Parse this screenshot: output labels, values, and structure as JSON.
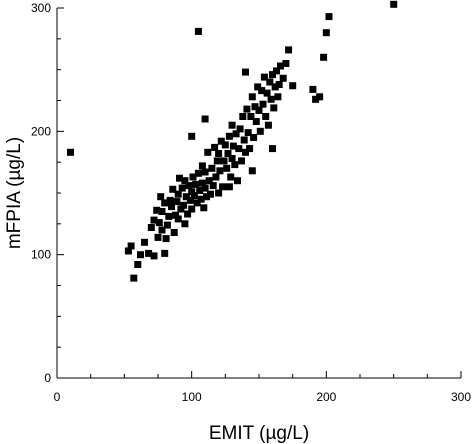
{
  "chart_data": {
    "type": "scatter",
    "title": "",
    "xlabel": "EMIT (µg/L)",
    "ylabel": "mFPIA (µg/L)",
    "xlim": [
      0,
      300
    ],
    "ylim": [
      0,
      300
    ],
    "xticks": [
      "0",
      "100",
      "200",
      "300"
    ],
    "yticks": [
      "0",
      "100",
      "200",
      "300"
    ],
    "grid": false,
    "marker": "square",
    "marker_color": "#000000",
    "points": [
      [
        10,
        183
      ],
      [
        53,
        103
      ],
      [
        55,
        107
      ],
      [
        57,
        81
      ],
      [
        60,
        92
      ],
      [
        62,
        100
      ],
      [
        65,
        110
      ],
      [
        68,
        101
      ],
      [
        70,
        122
      ],
      [
        72,
        99
      ],
      [
        72,
        128
      ],
      [
        74,
        136
      ],
      [
        75,
        114
      ],
      [
        76,
        126
      ],
      [
        77,
        147
      ],
      [
        78,
        135
      ],
      [
        78,
        120
      ],
      [
        80,
        142
      ],
      [
        80,
        101
      ],
      [
        81,
        113
      ],
      [
        82,
        124
      ],
      [
        83,
        131
      ],
      [
        84,
        144
      ],
      [
        85,
        139
      ],
      [
        86,
        153
      ],
      [
        87,
        118
      ],
      [
        88,
        132
      ],
      [
        89,
        143
      ],
      [
        90,
        129
      ],
      [
        90,
        149
      ],
      [
        91,
        162
      ],
      [
        92,
        137
      ],
      [
        93,
        154
      ],
      [
        94,
        140
      ],
      [
        95,
        125
      ],
      [
        95,
        160
      ],
      [
        96,
        147
      ],
      [
        97,
        133
      ],
      [
        98,
        156
      ],
      [
        99,
        144
      ],
      [
        100,
        151
      ],
      [
        100,
        137
      ],
      [
        101,
        163
      ],
      [
        102,
        148
      ],
      [
        103,
        157
      ],
      [
        104,
        142
      ],
      [
        105,
        166
      ],
      [
        106,
        152
      ],
      [
        107,
        145
      ],
      [
        108,
        172
      ],
      [
        108,
        158
      ],
      [
        109,
        138
      ],
      [
        110,
        154
      ],
      [
        110,
        167
      ],
      [
        111,
        147
      ],
      [
        112,
        183
      ],
      [
        113,
        160
      ],
      [
        114,
        149
      ],
      [
        115,
        170
      ],
      [
        116,
        156
      ],
      [
        117,
        187
      ],
      [
        118,
        163
      ],
      [
        119,
        176
      ],
      [
        120,
        150
      ],
      [
        120,
        182
      ],
      [
        121,
        168
      ],
      [
        122,
        192
      ],
      [
        123,
        155
      ],
      [
        124,
        176
      ],
      [
        125,
        189
      ],
      [
        126,
        170
      ],
      [
        127,
        182
      ],
      [
        128,
        196
      ],
      [
        129,
        163
      ],
      [
        130,
        178
      ],
      [
        130,
        205
      ],
      [
        131,
        188
      ],
      [
        132,
        173
      ],
      [
        133,
        198
      ],
      [
        134,
        160
      ],
      [
        135,
        186
      ],
      [
        136,
        202
      ],
      [
        137,
        176
      ],
      [
        138,
        212
      ],
      [
        139,
        193
      ],
      [
        140,
        183
      ],
      [
        141,
        218
      ],
      [
        142,
        199
      ],
      [
        143,
        186
      ],
      [
        144,
        212
      ],
      [
        145,
        228
      ],
      [
        146,
        195
      ],
      [
        147,
        220
      ],
      [
        148,
        208
      ],
      [
        149,
        236
      ],
      [
        150,
        217
      ],
      [
        151,
        200
      ],
      [
        152,
        233
      ],
      [
        153,
        222
      ],
      [
        154,
        244
      ],
      [
        155,
        212
      ],
      [
        156,
        231
      ],
      [
        157,
        205
      ],
      [
        158,
        240
      ],
      [
        159,
        226
      ],
      [
        160,
        246
      ],
      [
        161,
        219
      ],
      [
        162,
        236
      ],
      [
        163,
        249
      ],
      [
        164,
        228
      ],
      [
        165,
        238
      ],
      [
        166,
        253
      ],
      [
        168,
        243
      ],
      [
        170,
        255
      ],
      [
        172,
        266
      ],
      [
        175,
        237
      ],
      [
        190,
        234
      ],
      [
        192,
        226
      ],
      [
        195,
        228
      ],
      [
        198,
        260
      ],
      [
        200,
        280
      ],
      [
        202,
        293
      ],
      [
        250,
        303
      ],
      [
        105,
        281
      ],
      [
        140,
        248
      ],
      [
        100,
        196
      ],
      [
        110,
        210
      ],
      [
        145,
        168
      ],
      [
        160,
        186
      ],
      [
        128,
        155
      ]
    ]
  }
}
